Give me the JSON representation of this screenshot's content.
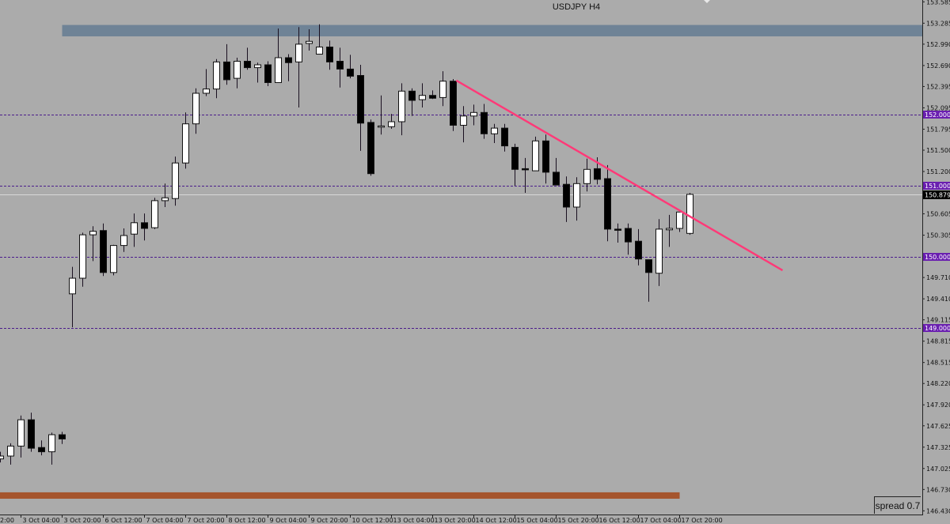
{
  "chart_data": {
    "type": "candlestick",
    "title": "USDJPY H4",
    "symbol": "USDJPY",
    "timeframe": "H4",
    "ylim": [
      146.378,
      153.611
    ],
    "current_price": "150.879",
    "y_ticks": [
      "153.585",
      "153.285",
      "152.990",
      "152.690",
      "152.395",
      "152.095",
      "151.795",
      "151.500",
      "151.200",
      "150.605",
      "150.305",
      "149.710",
      "149.410",
      "149.115",
      "148.815",
      "148.515",
      "148.220",
      "147.920",
      "147.625",
      "147.325",
      "147.025",
      "146.730",
      "146.430"
    ],
    "x_ticks": [
      {
        "bar": -2,
        "label": "2:00"
      },
      {
        "bar": 2,
        "label": "3 Oct 04:00"
      },
      {
        "bar": 6,
        "label": "3 Oct 20:00"
      },
      {
        "bar": 10,
        "label": "6 Oct 12:00"
      },
      {
        "bar": 14,
        "label": "7 Oct 04:00"
      },
      {
        "bar": 18,
        "label": "7 Oct 20:00"
      },
      {
        "bar": 22,
        "label": "8 Oct 12:00"
      },
      {
        "bar": 26,
        "label": "9 Oct 04:00"
      },
      {
        "bar": 30,
        "label": "9 Oct 20:00"
      },
      {
        "bar": 34,
        "label": "10 Oct 12:00"
      },
      {
        "bar": 38,
        "label": "13 Oct 04:00"
      },
      {
        "bar": 42,
        "label": "13 Oct 20:00"
      },
      {
        "bar": 46,
        "label": "14 Oct 12:00"
      },
      {
        "bar": 50,
        "label": "15 Oct 04:00"
      },
      {
        "bar": 54,
        "label": "15 Oct 20:00"
      },
      {
        "bar": 58,
        "label": "16 Oct 12:00"
      },
      {
        "bar": 62,
        "label": "17 Oct 04:00"
      },
      {
        "bar": 66,
        "label": "17 Oct 20:00"
      }
    ],
    "candles": [
      [
        147.16,
        147.26,
        147.11,
        147.2
      ],
      [
        147.2,
        147.38,
        147.08,
        147.34
      ],
      [
        147.34,
        147.77,
        147.18,
        147.71
      ],
      [
        147.71,
        147.81,
        147.26,
        147.31
      ],
      [
        147.32,
        147.42,
        147.21,
        147.26
      ],
      [
        147.26,
        147.53,
        147.08,
        147.5
      ],
      [
        147.5,
        147.54,
        147.37,
        147.44
      ],
      [
        149.48,
        149.86,
        149.01,
        149.7
      ],
      [
        149.7,
        150.34,
        149.58,
        150.31
      ],
      [
        150.31,
        150.43,
        149.94,
        150.36
      ],
      [
        150.37,
        150.47,
        149.73,
        149.78
      ],
      [
        149.78,
        150.17,
        149.74,
        150.16
      ],
      [
        150.16,
        150.4,
        150.07,
        150.3
      ],
      [
        150.32,
        150.61,
        150.14,
        150.48
      ],
      [
        150.48,
        150.61,
        150.23,
        150.4
      ],
      [
        150.41,
        150.83,
        150.39,
        150.79
      ],
      [
        150.79,
        151.03,
        150.7,
        150.83
      ],
      [
        150.82,
        151.41,
        150.72,
        151.32
      ],
      [
        151.32,
        152.03,
        151.24,
        151.87
      ],
      [
        151.87,
        152.37,
        151.73,
        152.3
      ],
      [
        152.3,
        152.64,
        152.26,
        152.36
      ],
      [
        152.36,
        152.78,
        152.23,
        152.74
      ],
      [
        152.74,
        152.99,
        152.42,
        152.49
      ],
      [
        152.51,
        152.8,
        152.37,
        152.75
      ],
      [
        152.75,
        152.94,
        152.63,
        152.66
      ],
      [
        152.66,
        152.73,
        152.45,
        152.7
      ],
      [
        152.7,
        152.75,
        152.4,
        152.45
      ],
      [
        152.45,
        153.21,
        152.45,
        152.8
      ],
      [
        152.8,
        152.85,
        152.47,
        152.73
      ],
      [
        152.74,
        153.23,
        152.1,
        152.99
      ],
      [
        153.0,
        153.2,
        152.9,
        153.03
      ],
      [
        152.85,
        153.27,
        152.85,
        152.95
      ],
      [
        152.95,
        153.04,
        152.63,
        152.74
      ],
      [
        152.75,
        152.94,
        152.38,
        152.64
      ],
      [
        152.64,
        152.84,
        152.51,
        152.54
      ],
      [
        152.55,
        152.7,
        151.49,
        151.88
      ],
      [
        151.89,
        151.93,
        151.14,
        151.17
      ],
      [
        151.83,
        152.27,
        151.72,
        151.84
      ],
      [
        151.83,
        152.01,
        151.8,
        151.9
      ],
      [
        151.9,
        152.44,
        151.71,
        152.33
      ],
      [
        152.33,
        152.37,
        151.98,
        152.2
      ],
      [
        152.21,
        152.44,
        152.1,
        152.27
      ],
      [
        152.27,
        152.34,
        152.22,
        152.23
      ],
      [
        152.24,
        152.61,
        152.12,
        152.47
      ],
      [
        152.47,
        152.5,
        151.77,
        151.85
      ],
      [
        151.85,
        152.12,
        151.61,
        151.98
      ],
      [
        151.98,
        152.14,
        151.85,
        152.03
      ],
      [
        152.03,
        152.15,
        151.66,
        151.73
      ],
      [
        151.73,
        151.87,
        151.6,
        151.81
      ],
      [
        151.81,
        151.87,
        151.48,
        151.56
      ],
      [
        151.54,
        151.59,
        151.0,
        151.23
      ],
      [
        151.24,
        151.39,
        150.9,
        151.23
      ],
      [
        151.21,
        151.69,
        151.21,
        151.63
      ],
      [
        151.63,
        151.72,
        151.03,
        151.19
      ],
      [
        151.19,
        151.39,
        151.01,
        151.01
      ],
      [
        151.02,
        151.13,
        150.49,
        150.7
      ],
      [
        150.7,
        151.12,
        150.51,
        151.03
      ],
      [
        151.03,
        151.38,
        150.92,
        151.23
      ],
      [
        151.24,
        151.4,
        151.02,
        151.09
      ],
      [
        151.1,
        151.29,
        150.22,
        150.39
      ],
      [
        150.39,
        150.47,
        150.2,
        150.38
      ],
      [
        150.4,
        150.47,
        150.03,
        150.21
      ],
      [
        150.22,
        150.39,
        149.88,
        149.97
      ],
      [
        149.96,
        149.96,
        149.37,
        149.78
      ],
      [
        149.77,
        150.53,
        149.59,
        150.39
      ],
      [
        150.38,
        150.59,
        150.14,
        150.4
      ],
      [
        150.4,
        150.63,
        150.35,
        150.63
      ],
      [
        150.33,
        150.9,
        150.31,
        150.879
      ]
    ],
    "candle_fields": [
      "open",
      "high",
      "low",
      "close"
    ],
    "horizontal_levels": [
      {
        "price": 152.0,
        "label": "152.000"
      },
      {
        "price": 151.0,
        "label": "151.000"
      },
      {
        "price": 150.0,
        "label": "150.000"
      },
      {
        "price": 149.0,
        "label": "149.000"
      }
    ],
    "zones": [
      {
        "from_bar": 6,
        "to": "right-edge",
        "price_top": 153.26,
        "price_bottom": 153.1,
        "color": "#6f8396"
      },
      {
        "from_bar": "left-edge",
        "to_bar": 66,
        "price_top": 146.69,
        "price_bottom": 146.6,
        "color": "#a5552e"
      }
    ],
    "trendline": {
      "from": {
        "bar": 44.3,
        "price": 152.48
      },
      "to": {
        "bar": 76,
        "price": 149.81
      },
      "color": "#ff3a78"
    },
    "colors": {
      "background": "#ababab",
      "bull": "#ffffff",
      "bear": "#000000",
      "level": "#4b1c8c",
      "level_label_bg": "#6a1fb0",
      "current_price_bg": "#000000",
      "current_price_line": "#d8d8d8"
    }
  },
  "spread": {
    "label": "spread 0.7"
  }
}
